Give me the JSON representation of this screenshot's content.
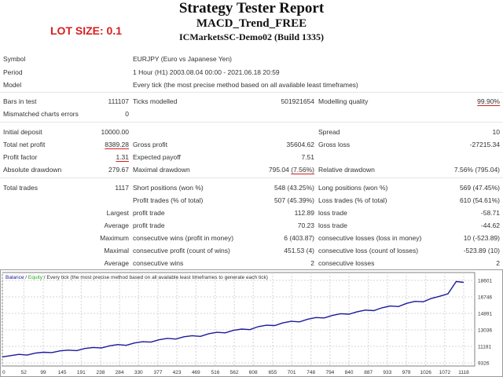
{
  "header": {
    "title": "Strategy Tester Report",
    "subtitle": "MACD_Trend_FREE",
    "server": "ICMarketsSC-Demo02 (Build 1335)",
    "lot_size": "LOT SIZE: 0.1"
  },
  "info": {
    "symbol_label": "Symbol",
    "symbol_value": "EURJPY (Euro vs Japanese Yen)",
    "period_label": "Period",
    "period_value": "1 Hour (H1) 2003.08.04 00:00 - 2021.06.18 20:59",
    "model_label": "Model",
    "model_value": "Every tick (the most precise method based on all available least timeframes)"
  },
  "stats": {
    "bars_label": "Bars in test",
    "bars_value": "111107",
    "ticks_label": "Ticks modelled",
    "ticks_value": "501921654",
    "quality_label": "Modelling quality",
    "quality_value": "99.90%",
    "mismatch_label": "Mismatched charts errors",
    "mismatch_value": "0",
    "deposit_label": "Initial deposit",
    "deposit_value": "10000.00",
    "spread_label": "Spread",
    "spread_value": "10",
    "netprofit_label": "Total net profit",
    "netprofit_value": "8389.28",
    "grossprofit_label": "Gross profit",
    "grossprofit_value": "35604.62",
    "grossloss_label": "Gross loss",
    "grossloss_value": "-27215.34",
    "pf_label": "Profit factor",
    "pf_value": "1.31",
    "payoff_label": "Expected payoff",
    "payoff_value": "7.51",
    "absdd_label": "Absolute drawdown",
    "absdd_value": "279.67",
    "maxdd_label": "Maximal drawdown",
    "maxdd_value": "795.04",
    "maxdd_pct": "(7.56%)",
    "reldd_label": "Relative drawdown",
    "reldd_value": "7.56% (795.04)"
  },
  "trades": {
    "total_label": "Total trades",
    "total_value": "1117",
    "short_label": "Short positions (won %)",
    "short_value": "548 (43.25%)",
    "long_label": "Long positions (won %)",
    "long_value": "569 (47.45%)",
    "profit_trades_label": "Profit trades (% of total)",
    "profit_trades_value": "507 (45.39%)",
    "loss_trades_label": "Loss trades (% of total)",
    "loss_trades_value": "610 (54.61%)",
    "largest_label": "Largest",
    "largest_profit_label": "profit trade",
    "largest_profit_value": "112.89",
    "largest_loss_label": "loss trade",
    "largest_loss_value": "-58.71",
    "average_label": "Average",
    "average_profit_label": "profit trade",
    "average_profit_value": "70.23",
    "average_loss_label": "loss trade",
    "average_loss_value": "-44.62",
    "maximum_label": "Maximum",
    "max_wins_label": "consecutive wins (profit in money)",
    "max_wins_value": "6 (403.87)",
    "max_losses_label": "consecutive losses (loss in money)",
    "max_losses_value": "10 (-523.89)",
    "maximal_label": "Maximal",
    "maximal_profit_label": "consecutive profit (count of wins)",
    "maximal_profit_value": "451.53 (4)",
    "maximal_loss_label": "consecutive loss (count of losses)",
    "maximal_loss_value": "-523.89 (10)",
    "average2_label": "Average",
    "avg_wins_label": "consecutive wins",
    "avg_wins_value": "2",
    "avg_losses_label": "consecutive losses",
    "avg_losses_value": "2"
  },
  "chart_data": {
    "type": "line",
    "legend_balance": "Balance",
    "legend_sep": " / ",
    "legend_equity": "Equity",
    "legend_rest": " / Every tick (the most precise method based on all available least timeframes to generate each tick)",
    "x_ticks": [
      "0",
      "52",
      "99",
      "145",
      "191",
      "238",
      "284",
      "330",
      "377",
      "423",
      "469",
      "516",
      "562",
      "608",
      "655",
      "701",
      "748",
      "794",
      "840",
      "887",
      "933",
      "979",
      "1026",
      "1072",
      "1118"
    ],
    "y_ticks": [
      "18601",
      "16746",
      "14891",
      "13036",
      "11181",
      "9326"
    ],
    "ylim": [
      9326,
      18601
    ],
    "xlim": [
      0,
      1118
    ],
    "colors": {
      "balance": "#1a1a9e",
      "equity": "#22aa22",
      "grid": "#d4d4d4"
    },
    "series": [
      {
        "name": "Balance",
        "x": [
          0,
          20,
          40,
          60,
          80,
          100,
          120,
          140,
          160,
          180,
          200,
          220,
          240,
          260,
          280,
          300,
          320,
          340,
          360,
          380,
          400,
          420,
          440,
          460,
          480,
          500,
          520,
          540,
          560,
          580,
          600,
          620,
          640,
          660,
          680,
          700,
          720,
          740,
          760,
          780,
          800,
          820,
          840,
          860,
          880,
          900,
          920,
          940,
          960,
          980,
          1000,
          1020,
          1040,
          1060,
          1080,
          1100,
          1118
        ],
        "y": [
          10000,
          10140,
          10280,
          10200,
          10420,
          10520,
          10480,
          10680,
          10760,
          10700,
          10940,
          11060,
          11000,
          11240,
          11380,
          11300,
          11560,
          11700,
          11660,
          11920,
          12080,
          12000,
          12260,
          12380,
          12300,
          12600,
          12760,
          12700,
          12980,
          13120,
          13060,
          13400,
          13560,
          13520,
          13820,
          14000,
          13940,
          14240,
          14420,
          14380,
          14660,
          14860,
          14800,
          15080,
          15260,
          15200,
          15520,
          15720,
          15660,
          16020,
          16240,
          16200,
          16580,
          16820,
          17100,
          18480,
          18380
        ]
      }
    ]
  }
}
